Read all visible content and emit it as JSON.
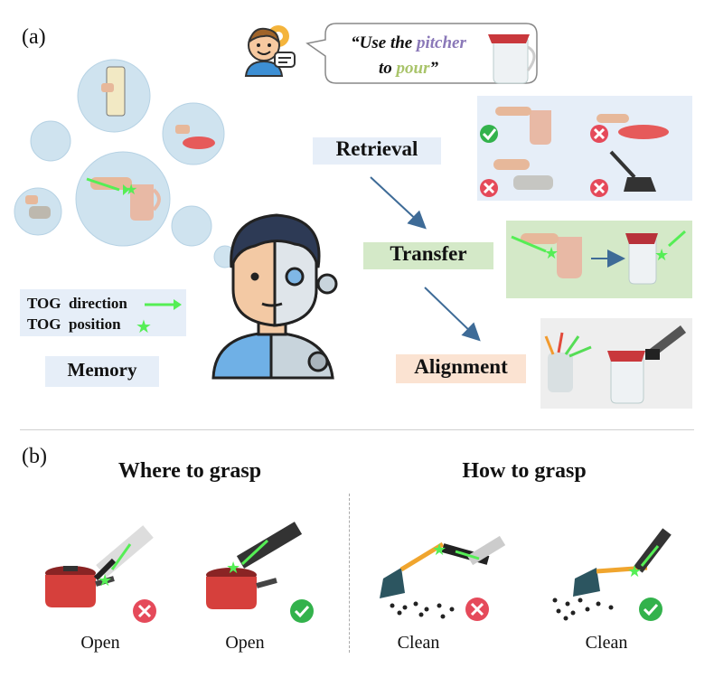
{
  "panel_a": {
    "label": "(a)",
    "instruction": {
      "part1": "“Use the ",
      "object": "pitcher",
      "part2": "to ",
      "task": "pour",
      "part3": "”",
      "object_color": "#8a78b8",
      "task_color": "#a9c46a"
    },
    "stages": {
      "retrieval": "Retrieval",
      "transfer": "Transfer",
      "alignment": "Alignment"
    },
    "legend": {
      "direction": "TOG  direction",
      "position": "TOG  position"
    },
    "memory": "Memory",
    "colors": {
      "retrieval_bg": "#e6eef8",
      "transfer_bg": "#d4e9c8",
      "alignment_bg": "#fbe3d2",
      "bubble": "#cfe3ef",
      "arrow": "#3e6b97",
      "tog_green": "#55ee55",
      "check": "#33b24c",
      "cross": "#e54a5a"
    }
  },
  "panel_b": {
    "label": "(b)",
    "where_title": "Where to grasp",
    "how_title": "How to grasp",
    "examples": [
      {
        "task": "Open",
        "correct": false
      },
      {
        "task": "Open",
        "correct": true
      },
      {
        "task": "Clean",
        "correct": false
      },
      {
        "task": "Clean",
        "correct": true
      }
    ]
  }
}
